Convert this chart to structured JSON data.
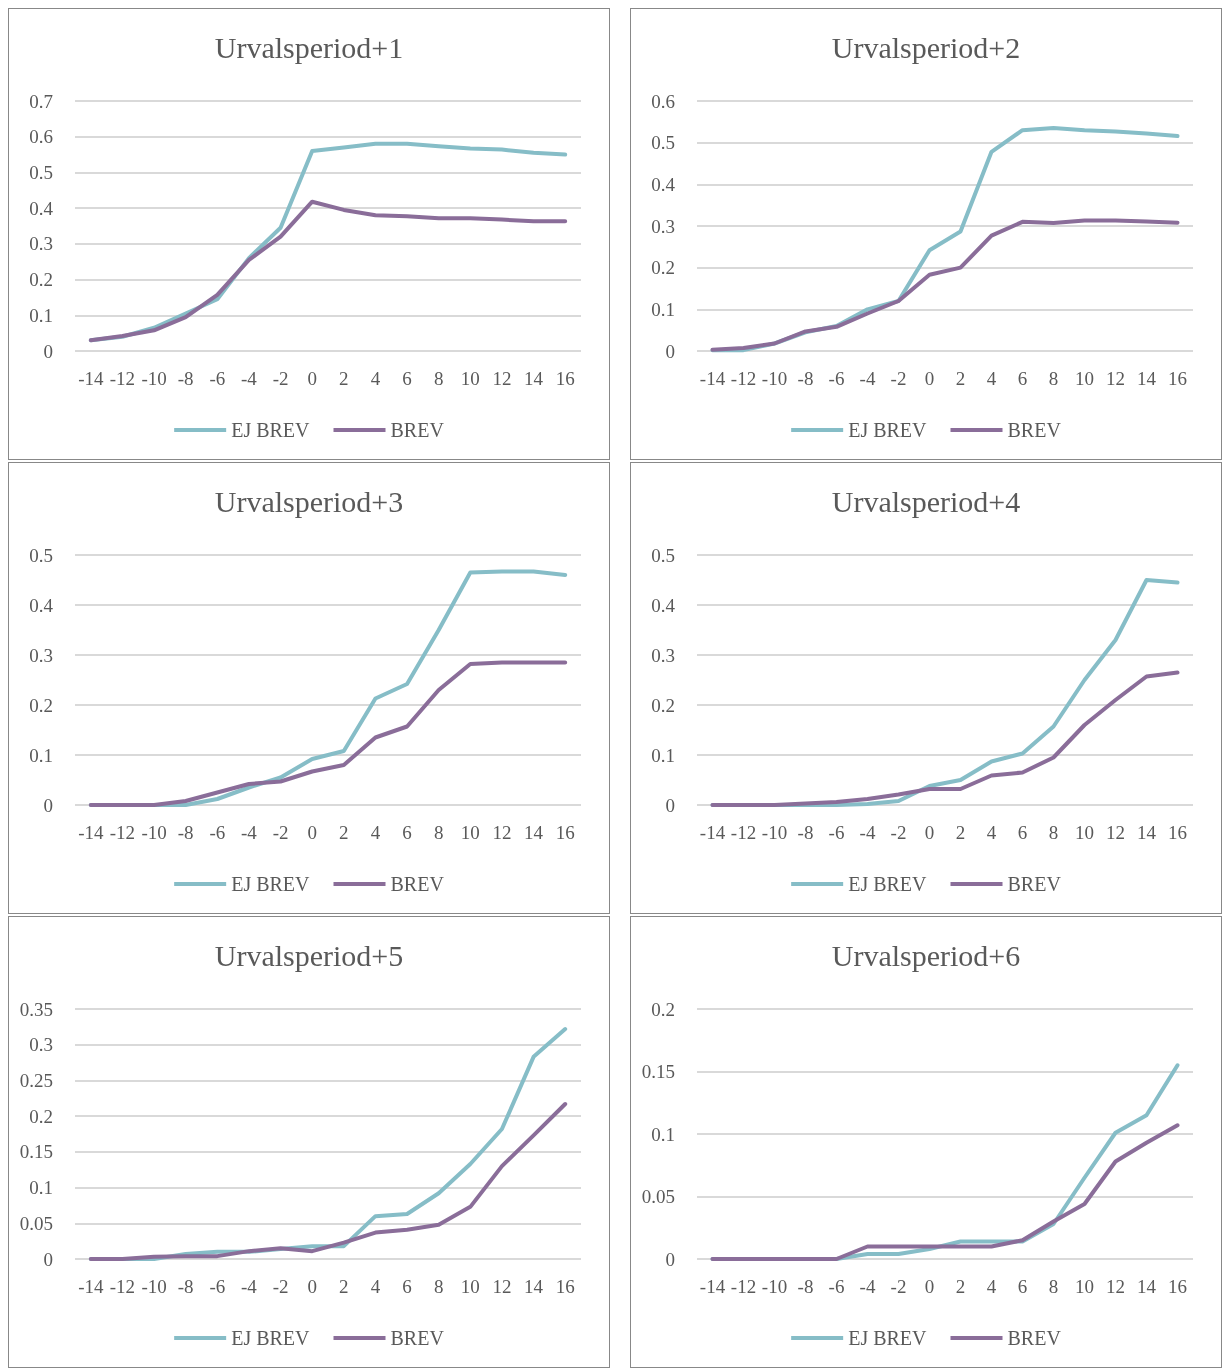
{
  "chart_data": [
    {
      "type": "line",
      "title": "Urvalsperiod+1",
      "categories": [
        "-14",
        "-12",
        "-10",
        "-8",
        "-6",
        "-4",
        "-2",
        "0",
        "2",
        "4",
        "6",
        "8",
        "10",
        "12",
        "14",
        "16"
      ],
      "ylim": [
        0,
        0.7
      ],
      "yticks": [
        0,
        0.1,
        0.2,
        0.3,
        0.4,
        0.5,
        0.6,
        0.7
      ],
      "grid": "y",
      "legend": "bottom",
      "marker": "none",
      "line_style": "solid",
      "series": [
        {
          "name": "EJ BREV",
          "color": "#86bdc7",
          "values": [
            0.03,
            0.04,
            0.065,
            0.105,
            0.145,
            0.26,
            0.345,
            0.56,
            0.57,
            0.58,
            0.58,
            0.573,
            0.567,
            0.564,
            0.555,
            0.55
          ]
        },
        {
          "name": "BREV",
          "color": "#8a6d99",
          "values": [
            0.03,
            0.042,
            0.058,
            0.095,
            0.157,
            0.255,
            0.32,
            0.418,
            0.395,
            0.38,
            0.377,
            0.372,
            0.372,
            0.368,
            0.363,
            0.363
          ]
        }
      ]
    },
    {
      "type": "line",
      "title": "Urvalsperiod+2",
      "categories": [
        "-14",
        "-12",
        "-10",
        "-8",
        "-6",
        "-4",
        "-2",
        "0",
        "2",
        "4",
        "6",
        "8",
        "10",
        "12",
        "14",
        "16"
      ],
      "ylim": [
        0,
        0.6
      ],
      "yticks": [
        0,
        0.1,
        0.2,
        0.3,
        0.4,
        0.5,
        0.6
      ],
      "grid": "y",
      "legend": "bottom",
      "marker": "none",
      "line_style": "solid",
      "series": [
        {
          "name": "EJ BREV",
          "color": "#86bdc7",
          "values": [
            0.002,
            0.002,
            0.018,
            0.045,
            0.06,
            0.1,
            0.12,
            0.242,
            0.287,
            0.478,
            0.53,
            0.535,
            0.53,
            0.527,
            0.522,
            0.516
          ]
        },
        {
          "name": "BREV",
          "color": "#8a6d99",
          "values": [
            0.003,
            0.007,
            0.018,
            0.047,
            0.058,
            0.09,
            0.12,
            0.183,
            0.2,
            0.277,
            0.31,
            0.307,
            0.313,
            0.313,
            0.311,
            0.308
          ]
        }
      ]
    },
    {
      "type": "line",
      "title": "Urvalsperiod+3",
      "categories": [
        "-14",
        "-12",
        "-10",
        "-8",
        "-6",
        "-4",
        "-2",
        "0",
        "2",
        "4",
        "6",
        "8",
        "10",
        "12",
        "14",
        "16"
      ],
      "ylim": [
        0,
        0.5
      ],
      "yticks": [
        0,
        0.1,
        0.2,
        0.3,
        0.4,
        0.5
      ],
      "grid": "y",
      "legend": "bottom",
      "marker": "none",
      "line_style": "solid",
      "series": [
        {
          "name": "EJ BREV",
          "color": "#86bdc7",
          "values": [
            0,
            0,
            0,
            0,
            0.012,
            0.035,
            0.055,
            0.092,
            0.108,
            0.213,
            0.242,
            0.35,
            0.465,
            0.467,
            0.467,
            0.46
          ]
        },
        {
          "name": "BREV",
          "color": "#8a6d99",
          "values": [
            0,
            0,
            0,
            0.008,
            0.025,
            0.042,
            0.047,
            0.067,
            0.08,
            0.135,
            0.157,
            0.23,
            0.282,
            0.285,
            0.285,
            0.285
          ]
        }
      ]
    },
    {
      "type": "line",
      "title": "Urvalsperiod+4",
      "categories": [
        "-14",
        "-12",
        "-10",
        "-8",
        "-6",
        "-4",
        "-2",
        "0",
        "2",
        "4",
        "6",
        "8",
        "10",
        "12",
        "14",
        "16"
      ],
      "ylim": [
        0,
        0.5
      ],
      "yticks": [
        0,
        0.1,
        0.2,
        0.3,
        0.4,
        0.5
      ],
      "grid": "y",
      "legend": "bottom",
      "marker": "none",
      "line_style": "solid",
      "series": [
        {
          "name": "EJ BREV",
          "color": "#86bdc7",
          "values": [
            0,
            0,
            0,
            0,
            0,
            0.002,
            0.008,
            0.038,
            0.05,
            0.087,
            0.103,
            0.157,
            0.25,
            0.33,
            0.45,
            0.445
          ]
        },
        {
          "name": "BREV",
          "color": "#8a6d99",
          "values": [
            0,
            0,
            0,
            0.003,
            0.006,
            0.012,
            0.021,
            0.032,
            0.032,
            0.059,
            0.065,
            0.095,
            0.16,
            0.21,
            0.257,
            0.265
          ]
        }
      ]
    },
    {
      "type": "line",
      "title": "Urvalsperiod+5",
      "categories": [
        "-14",
        "-12",
        "-10",
        "-8",
        "-6",
        "-4",
        "-2",
        "0",
        "2",
        "4",
        "6",
        "8",
        "10",
        "12",
        "14",
        "16"
      ],
      "ylim": [
        0,
        0.35
      ],
      "yticks": [
        0,
        0.05,
        0.1,
        0.15,
        0.2,
        0.25,
        0.3,
        0.35
      ],
      "grid": "y",
      "legend": "bottom",
      "marker": "none",
      "line_style": "solid",
      "series": [
        {
          "name": "EJ BREV",
          "color": "#86bdc7",
          "values": [
            0,
            0,
            0,
            0.007,
            0.01,
            0.01,
            0.014,
            0.018,
            0.018,
            0.06,
            0.063,
            0.092,
            0.133,
            0.182,
            0.283,
            0.322
          ]
        },
        {
          "name": "BREV",
          "color": "#8a6d99",
          "values": [
            0,
            0,
            0.003,
            0.004,
            0.004,
            0.011,
            0.015,
            0.011,
            0.023,
            0.037,
            0.041,
            0.048,
            0.073,
            0.13,
            0.173,
            0.217
          ]
        }
      ]
    },
    {
      "type": "line",
      "title": "Urvalsperiod+6",
      "categories": [
        "-14",
        "-12",
        "-10",
        "-8",
        "-6",
        "-4",
        "-2",
        "0",
        "2",
        "4",
        "6",
        "8",
        "10",
        "12",
        "14",
        "16"
      ],
      "ylim": [
        0,
        0.2
      ],
      "yticks": [
        0,
        0.05,
        0.1,
        0.15,
        0.2
      ],
      "grid": "y",
      "legend": "bottom",
      "marker": "none",
      "line_style": "solid",
      "series": [
        {
          "name": "EJ BREV",
          "color": "#86bdc7",
          "values": [
            0,
            0,
            0,
            0,
            0,
            0.004,
            0.004,
            0.008,
            0.014,
            0.014,
            0.014,
            0.028,
            0.065,
            0.101,
            0.115,
            0.155
          ]
        },
        {
          "name": "BREV",
          "color": "#8a6d99",
          "values": [
            0,
            0,
            0,
            0,
            0,
            0.01,
            0.01,
            0.01,
            0.01,
            0.01,
            0.015,
            0.03,
            0.044,
            0.078,
            0.093,
            0.107
          ]
        }
      ]
    }
  ]
}
